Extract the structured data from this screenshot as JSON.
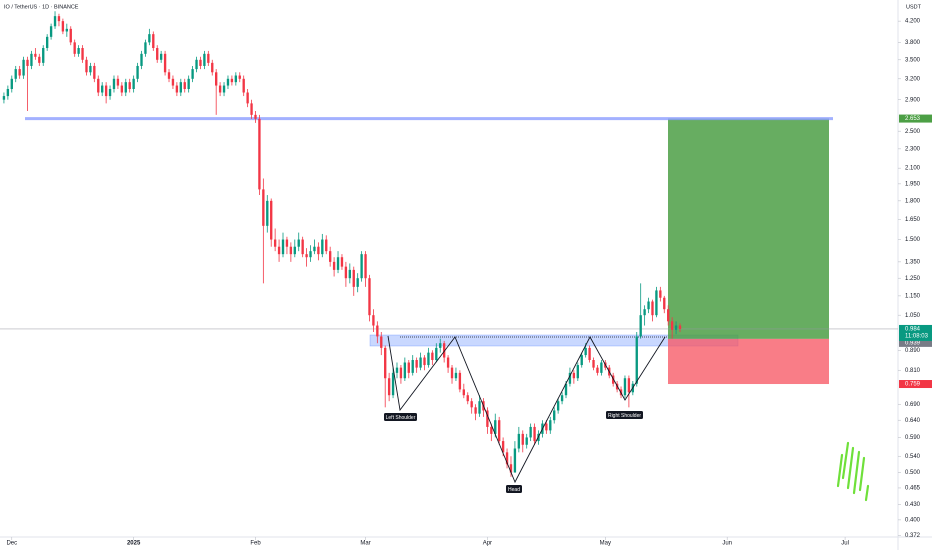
{
  "chart_data": {
    "type": "candlestick",
    "title": "IO / TetherUS · 1D · BINANCE",
    "currency": "USDT",
    "log_scale": true,
    "up_color": "#089981",
    "down_color": "#f23645",
    "xlim": [
      -3,
      224.7
    ],
    "ylim": [
      0.369,
      4.64
    ],
    "xticks": [
      {
        "value": 0,
        "label": "Dec"
      },
      {
        "value": 31,
        "label": "2025"
      },
      {
        "value": 62,
        "label": "Feb"
      },
      {
        "value": 90,
        "label": "Mar"
      },
      {
        "value": 121,
        "label": "Apr"
      },
      {
        "value": 151,
        "label": "May"
      },
      {
        "value": 182,
        "label": "Jun"
      },
      {
        "value": 212,
        "label": "Jul"
      }
    ],
    "yticks": [
      {
        "value": 4.2,
        "label": "4.200"
      },
      {
        "value": 3.8,
        "label": "3.800"
      },
      {
        "value": 3.5,
        "label": "3.500"
      },
      {
        "value": 3.2,
        "label": "3.200"
      },
      {
        "value": 2.9,
        "label": "2.900"
      },
      {
        "value": 2.5,
        "label": "2.500"
      },
      {
        "value": 2.3,
        "label": "2.300"
      },
      {
        "value": 2.1,
        "label": "2.100"
      },
      {
        "value": 1.95,
        "label": "1.950"
      },
      {
        "value": 1.8,
        "label": "1.800"
      },
      {
        "value": 1.65,
        "label": "1.650"
      },
      {
        "value": 1.5,
        "label": "1.500"
      },
      {
        "value": 1.35,
        "label": "1.350"
      },
      {
        "value": 1.25,
        "label": "1.250"
      },
      {
        "value": 1.15,
        "label": "1.150"
      },
      {
        "value": 1.05,
        "label": "1.050"
      },
      {
        "value": 0.89,
        "label": "0.890"
      },
      {
        "value": 0.81,
        "label": "0.810"
      },
      {
        "value": 0.69,
        "label": "0.690"
      },
      {
        "value": 0.64,
        "label": "0.640"
      },
      {
        "value": 0.59,
        "label": "0.590"
      },
      {
        "value": 0.54,
        "label": "0.540"
      },
      {
        "value": 0.5,
        "label": "0.500"
      },
      {
        "value": 0.465,
        "label": "0.465"
      },
      {
        "value": 0.43,
        "label": "0.430"
      },
      {
        "value": 0.4,
        "label": "0.400"
      },
      {
        "value": 0.372,
        "label": "0.372"
      }
    ],
    "position": {
      "target": {
        "value": 2.653,
        "label": "2.653"
      },
      "entry": {
        "value": 0.939,
        "label": "0.939"
      },
      "stop": {
        "value": 0.759,
        "label": "0.759"
      }
    },
    "last_price": {
      "value": 0.984,
      "label": "0.984"
    },
    "countdown": "11:08:03",
    "annotations": [
      "Left Shoulder",
      "Head",
      "Right Shoulder"
    ],
    "x": [
      -2,
      -1,
      0,
      1,
      2,
      3,
      4,
      5,
      6,
      7,
      8,
      9,
      10,
      11,
      12,
      13,
      14,
      15,
      16,
      17,
      18,
      19,
      20,
      21,
      22,
      23,
      24,
      25,
      26,
      27,
      28,
      29,
      30,
      31,
      32,
      33,
      34,
      35,
      36,
      37,
      38,
      39,
      40,
      41,
      42,
      43,
      44,
      45,
      46,
      47,
      48,
      49,
      50,
      51,
      52,
      53,
      54,
      55,
      56,
      57,
      58,
      59,
      60,
      61,
      62,
      63,
      64,
      65,
      66,
      67,
      68,
      69,
      70,
      71,
      72,
      73,
      74,
      75,
      76,
      77,
      78,
      79,
      80,
      81,
      82,
      83,
      84,
      85,
      86,
      87,
      88,
      89,
      90,
      91,
      92,
      93,
      94,
      95,
      96,
      97,
      98,
      99,
      100,
      101,
      102,
      103,
      104,
      105,
      106,
      107,
      108,
      109,
      110,
      111,
      112,
      113,
      114,
      115,
      116,
      117,
      118,
      119,
      120,
      121,
      122,
      123,
      124,
      125,
      126,
      127,
      128,
      129,
      130,
      131,
      132,
      133,
      134,
      135,
      136,
      137,
      138,
      139,
      140,
      141,
      142,
      143,
      144,
      145,
      146,
      147,
      148,
      149,
      150,
      151,
      152,
      153,
      154,
      155,
      156,
      157,
      158,
      159,
      160,
      161,
      162,
      163,
      164,
      165,
      166,
      167,
      168,
      169,
      170
    ],
    "ohlc": [
      [
        2.9,
        3.0,
        2.85,
        2.95
      ],
      [
        2.95,
        3.1,
        2.9,
        3.05
      ],
      [
        3.05,
        3.25,
        3.0,
        3.2
      ],
      [
        3.2,
        3.4,
        3.15,
        3.35
      ],
      [
        3.35,
        3.4,
        3.2,
        3.25
      ],
      [
        3.25,
        3.55,
        3.2,
        3.5
      ],
      [
        3.5,
        3.55,
        2.75,
        3.4
      ],
      [
        3.4,
        3.65,
        3.35,
        3.6
      ],
      [
        3.6,
        3.7,
        3.5,
        3.55
      ],
      [
        3.55,
        3.6,
        3.4,
        3.45
      ],
      [
        3.45,
        3.75,
        3.4,
        3.7
      ],
      [
        3.7,
        3.95,
        3.65,
        3.9
      ],
      [
        3.9,
        4.15,
        3.85,
        4.1
      ],
      [
        4.1,
        4.4,
        4.05,
        4.3
      ],
      [
        4.3,
        4.35,
        4.1,
        4.2
      ],
      [
        4.2,
        4.25,
        3.95,
        4.0
      ],
      [
        4.0,
        4.15,
        3.9,
        4.05
      ],
      [
        4.05,
        4.1,
        3.75,
        3.8
      ],
      [
        3.8,
        3.85,
        3.55,
        3.6
      ],
      [
        3.6,
        3.75,
        3.55,
        3.7
      ],
      [
        3.7,
        3.75,
        3.45,
        3.5
      ],
      [
        3.5,
        3.55,
        3.25,
        3.3
      ],
      [
        3.3,
        3.45,
        3.25,
        3.4
      ],
      [
        3.4,
        3.45,
        3.15,
        3.2
      ],
      [
        3.2,
        3.25,
        2.95,
        3.0
      ],
      [
        3.0,
        3.15,
        2.95,
        3.1
      ],
      [
        3.1,
        3.15,
        2.85,
        2.95
      ],
      [
        2.95,
        3.1,
        2.9,
        3.05
      ],
      [
        3.05,
        3.25,
        3.0,
        3.2
      ],
      [
        3.2,
        3.25,
        3.05,
        3.1
      ],
      [
        3.1,
        3.15,
        2.95,
        3.0
      ],
      [
        3.0,
        3.2,
        2.95,
        3.15
      ],
      [
        3.15,
        3.2,
        3.0,
        3.05
      ],
      [
        3.05,
        3.25,
        3.0,
        3.2
      ],
      [
        3.2,
        3.45,
        3.15,
        3.4
      ],
      [
        3.4,
        3.65,
        3.35,
        3.6
      ],
      [
        3.6,
        3.85,
        3.55,
        3.8
      ],
      [
        3.8,
        4.05,
        3.75,
        3.95
      ],
      [
        3.95,
        4.0,
        3.65,
        3.7
      ],
      [
        3.7,
        3.75,
        3.45,
        3.5
      ],
      [
        3.5,
        3.65,
        3.45,
        3.6
      ],
      [
        3.6,
        3.65,
        3.25,
        3.3
      ],
      [
        3.3,
        3.35,
        3.15,
        3.2
      ],
      [
        3.2,
        3.25,
        3.05,
        3.1
      ],
      [
        3.1,
        3.15,
        2.95,
        3.0
      ],
      [
        3.0,
        3.2,
        2.95,
        3.15
      ],
      [
        3.15,
        3.2,
        3.0,
        3.05
      ],
      [
        3.05,
        3.25,
        3.0,
        3.2
      ],
      [
        3.2,
        3.4,
        3.15,
        3.35
      ],
      [
        3.35,
        3.55,
        3.3,
        3.5
      ],
      [
        3.5,
        3.55,
        3.35,
        3.4
      ],
      [
        3.4,
        3.65,
        3.35,
        3.6
      ],
      [
        3.6,
        3.65,
        3.4,
        3.45
      ],
      [
        3.45,
        3.5,
        3.25,
        3.3
      ],
      [
        3.3,
        3.35,
        2.7,
        3.1
      ],
      [
        3.1,
        3.15,
        2.95,
        3.0
      ],
      [
        3.0,
        3.15,
        2.95,
        3.1
      ],
      [
        3.1,
        3.25,
        3.05,
        3.2
      ],
      [
        3.2,
        3.25,
        3.1,
        3.15
      ],
      [
        3.15,
        3.3,
        3.1,
        3.25
      ],
      [
        3.25,
        3.3,
        3.15,
        3.2
      ],
      [
        3.2,
        3.25,
        2.95,
        3.0
      ],
      [
        3.0,
        3.05,
        2.8,
        2.85
      ],
      [
        2.85,
        2.9,
        2.65,
        2.7
      ],
      [
        2.7,
        2.75,
        2.6,
        2.65
      ],
      [
        2.65,
        2.7,
        1.85,
        1.9
      ],
      [
        1.9,
        2.0,
        1.22,
        1.6
      ],
      [
        1.6,
        1.85,
        1.55,
        1.8
      ],
      [
        1.8,
        1.82,
        1.45,
        1.5
      ],
      [
        1.5,
        1.58,
        1.42,
        1.45
      ],
      [
        1.45,
        1.5,
        1.35,
        1.4
      ],
      [
        1.4,
        1.55,
        1.38,
        1.5
      ],
      [
        1.5,
        1.52,
        1.4,
        1.45
      ],
      [
        1.45,
        1.48,
        1.35,
        1.4
      ],
      [
        1.4,
        1.5,
        1.38,
        1.45
      ],
      [
        1.45,
        1.55,
        1.42,
        1.5
      ],
      [
        1.5,
        1.52,
        1.38,
        1.4
      ],
      [
        1.4,
        1.44,
        1.32,
        1.38
      ],
      [
        1.38,
        1.46,
        1.35,
        1.42
      ],
      [
        1.42,
        1.5,
        1.4,
        1.45
      ],
      [
        1.45,
        1.48,
        1.36,
        1.4
      ],
      [
        1.4,
        1.54,
        1.38,
        1.5
      ],
      [
        1.5,
        1.53,
        1.4,
        1.42
      ],
      [
        1.42,
        1.45,
        1.32,
        1.35
      ],
      [
        1.35,
        1.38,
        1.26,
        1.3
      ],
      [
        1.3,
        1.42,
        1.28,
        1.38
      ],
      [
        1.38,
        1.4,
        1.3,
        1.32
      ],
      [
        1.32,
        1.35,
        1.2,
        1.25
      ],
      [
        1.25,
        1.34,
        1.22,
        1.3
      ],
      [
        1.3,
        1.32,
        1.15,
        1.2
      ],
      [
        1.2,
        1.28,
        1.17,
        1.25
      ],
      [
        1.25,
        1.42,
        1.23,
        1.4
      ],
      [
        1.4,
        1.42,
        1.2,
        1.25
      ],
      [
        1.25,
        1.27,
        1.02,
        1.05
      ],
      [
        1.05,
        1.08,
        0.97,
        1.0
      ],
      [
        1.0,
        1.02,
        0.92,
        0.95
      ],
      [
        0.95,
        0.97,
        0.87,
        0.9
      ],
      [
        0.9,
        0.91,
        0.68,
        0.78
      ],
      [
        0.78,
        0.8,
        0.7,
        0.72
      ],
      [
        0.72,
        0.82,
        0.71,
        0.8
      ],
      [
        0.8,
        0.84,
        0.78,
        0.82
      ],
      [
        0.82,
        0.83,
        0.76,
        0.78
      ],
      [
        0.78,
        0.86,
        0.77,
        0.84
      ],
      [
        0.84,
        0.85,
        0.78,
        0.8
      ],
      [
        0.8,
        0.87,
        0.79,
        0.85
      ],
      [
        0.85,
        0.86,
        0.8,
        0.82
      ],
      [
        0.82,
        0.88,
        0.81,
        0.86
      ],
      [
        0.86,
        0.87,
        0.81,
        0.83
      ],
      [
        0.83,
        0.9,
        0.82,
        0.88
      ],
      [
        0.88,
        0.89,
        0.83,
        0.85
      ],
      [
        0.85,
        0.92,
        0.84,
        0.9
      ],
      [
        0.9,
        0.94,
        0.88,
        0.92
      ],
      [
        0.92,
        0.93,
        0.84,
        0.86
      ],
      [
        0.86,
        0.87,
        0.8,
        0.82
      ],
      [
        0.82,
        0.83,
        0.76,
        0.78
      ],
      [
        0.78,
        0.82,
        0.77,
        0.8
      ],
      [
        0.8,
        0.81,
        0.73,
        0.74
      ],
      [
        0.74,
        0.76,
        0.71,
        0.72
      ],
      [
        0.72,
        0.73,
        0.69,
        0.7
      ],
      [
        0.7,
        0.71,
        0.66,
        0.68
      ],
      [
        0.68,
        0.69,
        0.64,
        0.66
      ],
      [
        0.66,
        0.72,
        0.65,
        0.7
      ],
      [
        0.7,
        0.71,
        0.65,
        0.67
      ],
      [
        0.67,
        0.68,
        0.6,
        0.62
      ],
      [
        0.62,
        0.63,
        0.58,
        0.6
      ],
      [
        0.6,
        0.66,
        0.59,
        0.64
      ],
      [
        0.64,
        0.65,
        0.57,
        0.58
      ],
      [
        0.58,
        0.59,
        0.54,
        0.55
      ],
      [
        0.55,
        0.56,
        0.51,
        0.52
      ],
      [
        0.52,
        0.54,
        0.49,
        0.5
      ],
      [
        0.5,
        0.58,
        0.5,
        0.56
      ],
      [
        0.56,
        0.62,
        0.55,
        0.6
      ],
      [
        0.6,
        0.61,
        0.55,
        0.57
      ],
      [
        0.57,
        0.6,
        0.56,
        0.59
      ],
      [
        0.59,
        0.63,
        0.58,
        0.62
      ],
      [
        0.62,
        0.63,
        0.57,
        0.58
      ],
      [
        0.58,
        0.61,
        0.57,
        0.6
      ],
      [
        0.6,
        0.64,
        0.59,
        0.63
      ],
      [
        0.63,
        0.64,
        0.6,
        0.61
      ],
      [
        0.61,
        0.65,
        0.6,
        0.64
      ],
      [
        0.64,
        0.68,
        0.63,
        0.67
      ],
      [
        0.67,
        0.71,
        0.66,
        0.7
      ],
      [
        0.7,
        0.73,
        0.69,
        0.72
      ],
      [
        0.72,
        0.77,
        0.71,
        0.76
      ],
      [
        0.76,
        0.82,
        0.75,
        0.8
      ],
      [
        0.8,
        0.81,
        0.76,
        0.78
      ],
      [
        0.78,
        0.84,
        0.77,
        0.83
      ],
      [
        0.83,
        0.88,
        0.82,
        0.87
      ],
      [
        0.87,
        0.92,
        0.86,
        0.9
      ],
      [
        0.9,
        0.91,
        0.84,
        0.85
      ],
      [
        0.85,
        0.86,
        0.81,
        0.82
      ],
      [
        0.82,
        0.83,
        0.79,
        0.8
      ],
      [
        0.8,
        0.85,
        0.79,
        0.84
      ],
      [
        0.84,
        0.85,
        0.81,
        0.82
      ],
      [
        0.82,
        0.83,
        0.78,
        0.79
      ],
      [
        0.79,
        0.8,
        0.75,
        0.76
      ],
      [
        0.76,
        0.77,
        0.73,
        0.74
      ],
      [
        0.74,
        0.75,
        0.71,
        0.72
      ],
      [
        0.72,
        0.79,
        0.71,
        0.78
      ],
      [
        0.78,
        0.79,
        0.68,
        0.73
      ],
      [
        0.73,
        0.77,
        0.72,
        0.76
      ],
      [
        0.76,
        0.97,
        0.75,
        0.95
      ],
      [
        0.95,
        1.22,
        0.94,
        1.05
      ],
      [
        1.05,
        1.1,
        1.0,
        1.08
      ],
      [
        1.08,
        1.14,
        1.06,
        1.12
      ],
      [
        1.12,
        1.13,
        1.02,
        1.05
      ],
      [
        1.05,
        1.2,
        1.04,
        1.18
      ],
      [
        1.18,
        1.2,
        1.12,
        1.14
      ],
      [
        1.14,
        1.15,
        1.06,
        1.08
      ],
      [
        1.08,
        1.1,
        1.0,
        1.02
      ],
      [
        1.02,
        1.04,
        0.94,
        0.98
      ],
      [
        0.98,
        1.02,
        0.96,
        1.0
      ],
      [
        1.0,
        1.01,
        0.97,
        0.984
      ]
    ]
  }
}
